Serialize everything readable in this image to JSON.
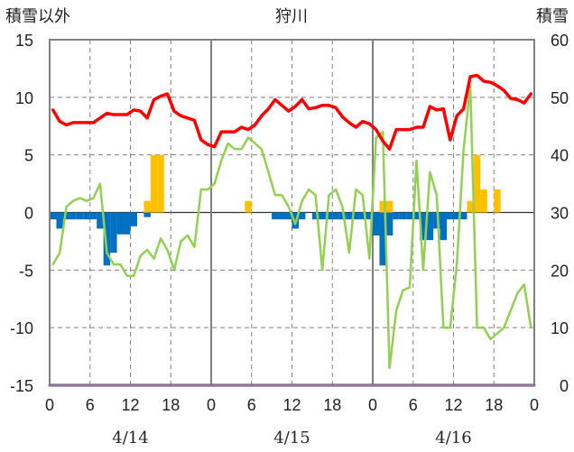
{
  "chart_data": {
    "type": "bar",
    "title": "狩川",
    "y_left_label": "積雪以外",
    "y_right_label": "積雪",
    "y_left_ticks": [
      "15",
      "10",
      "5",
      "0",
      "-5",
      "-10",
      "-15"
    ],
    "y_right_ticks": [
      "60",
      "50",
      "40",
      "30",
      "20",
      "10",
      "0"
    ],
    "y_left_range": [
      -15,
      15
    ],
    "y_right_range": [
      0,
      60
    ],
    "x_tick_labels": [
      "0",
      "6",
      "12",
      "18",
      "0",
      "6",
      "12",
      "18",
      "0",
      "6",
      "12",
      "18",
      "0"
    ],
    "x_range_hours": [
      0,
      72
    ],
    "dates": [
      "4/14",
      "4/15",
      "4/16"
    ],
    "grid": "dashed",
    "colors": {
      "temperature": "#ff0000",
      "snow_depth": "#92d050",
      "precipitation": "#ffc000",
      "temperature_change": "#0070c0",
      "snow_depth_zero": "#7030a0"
    },
    "series": [
      {
        "key": "temperature",
        "axis": "left",
        "kind": "line",
        "x": [
          0,
          1,
          2,
          3,
          4,
          5,
          6,
          7,
          8,
          9,
          10,
          11,
          12,
          13,
          14,
          15,
          16,
          17,
          18,
          19,
          20,
          21,
          22,
          23,
          24,
          25,
          26,
          27,
          28,
          29,
          30,
          31,
          32,
          33,
          34,
          35,
          36,
          37,
          38,
          39,
          40,
          41,
          42,
          43,
          44,
          45,
          46,
          47,
          48,
          49,
          50,
          51,
          52,
          53,
          54,
          55,
          56,
          57,
          58,
          59,
          60,
          61,
          62,
          63,
          64,
          65,
          66,
          67,
          68,
          69,
          70,
          71
        ],
        "values": [
          8.9,
          7.9,
          7.6,
          7.8,
          7.8,
          7.8,
          7.8,
          8.2,
          8.6,
          8.5,
          8.5,
          8.5,
          8.9,
          8.8,
          8.2,
          9.8,
          10.1,
          10.3,
          8.8,
          8.4,
          8.2,
          8.0,
          6.3,
          5.9,
          5.7,
          7.0,
          7.0,
          7.0,
          7.4,
          7.2,
          7.6,
          8.4,
          9.0,
          9.8,
          9.3,
          8.8,
          9.2,
          9.8,
          9.0,
          9.1,
          9.3,
          9.3,
          9.1,
          8.3,
          7.8,
          7.4,
          7.9,
          7.7,
          7.2,
          6.2,
          5.5,
          7.2,
          7.2,
          7.2,
          7.4,
          7.4,
          9.2,
          8.9,
          9.0,
          6.3,
          8.4,
          9.0,
          11.8,
          11.9,
          11.4,
          11.3,
          11.0,
          10.6,
          9.9,
          9.8,
          9.5,
          10.3
        ]
      },
      {
        "key": "snow_depth",
        "axis": "right",
        "kind": "line",
        "x": [
          0,
          1,
          2,
          3,
          4,
          5,
          6,
          7,
          8,
          9,
          10,
          11,
          12,
          13,
          14,
          15,
          16,
          17,
          18,
          19,
          20,
          21,
          22,
          23,
          24,
          25,
          26,
          27,
          28,
          29,
          30,
          31,
          32,
          33,
          34,
          35,
          36,
          37,
          38,
          39,
          40,
          41,
          42,
          43,
          44,
          45,
          46,
          47,
          48,
          49,
          50,
          51,
          52,
          53,
          54,
          55,
          56,
          57,
          58,
          59,
          60,
          61,
          62,
          63,
          64,
          65,
          66,
          67,
          68,
          69,
          70,
          71
        ],
        "values": [
          21,
          23,
          31,
          32,
          32.5,
          32,
          32.5,
          35,
          23,
          21,
          21,
          19,
          19,
          22.5,
          23.5,
          22,
          25.5,
          23.5,
          20,
          25,
          26,
          24,
          34,
          34,
          35,
          39,
          42,
          41,
          41,
          43,
          42,
          41,
          37,
          33,
          33,
          31,
          28,
          32,
          34,
          33,
          20,
          33,
          34,
          31,
          23,
          34,
          33,
          22,
          43,
          44,
          3,
          13,
          16.5,
          17,
          39,
          20,
          37,
          33,
          10,
          10,
          21,
          41,
          52,
          10,
          10,
          8,
          9,
          10,
          13,
          16,
          17.5,
          10
        ]
      },
      {
        "key": "precipitation",
        "axis": "left",
        "kind": "bar",
        "x": [
          14,
          15,
          16,
          29,
          49,
          50,
          62,
          63,
          64,
          65,
          66,
          67
        ],
        "values": [
          1,
          5,
          5,
          1,
          1,
          1,
          1,
          5,
          2,
          0,
          2,
          0
        ]
      },
      {
        "key": "temperature_change",
        "axis": "left",
        "kind": "bar",
        "x": [
          0,
          1,
          2,
          3,
          4,
          5,
          6,
          7,
          8,
          9,
          10,
          11,
          12,
          14,
          17,
          18,
          19,
          22,
          23,
          30,
          31,
          32,
          33,
          34,
          35,
          36,
          37,
          38,
          39,
          40,
          41,
          42,
          43,
          44,
          45,
          46,
          47,
          48,
          49,
          50,
          51,
          52,
          53,
          54,
          55,
          56,
          57,
          58,
          59,
          60,
          61
        ],
        "values": [
          -0.6,
          -1.4,
          -0.6,
          -0.6,
          -0.6,
          -0.6,
          -0.6,
          -1.4,
          -4.6,
          -3.5,
          -1.9,
          -1.9,
          -1.2,
          -0.4,
          0,
          0,
          0,
          0,
          0,
          0,
          0,
          0,
          -0.6,
          -0.6,
          -0.6,
          -1.4,
          -0.6,
          0,
          -0.6,
          -0.6,
          -0.6,
          -0.6,
          -0.6,
          -0.6,
          -0.6,
          -0.6,
          -0.6,
          -2.0,
          -4.6,
          -2.0,
          -0.6,
          -0.6,
          -0.6,
          -0.6,
          -2.4,
          -2.4,
          -1.4,
          -2.4,
          -0.6,
          -0.6,
          -0.6
        ]
      },
      {
        "key": "snow_depth_zero",
        "axis": "right",
        "kind": "line",
        "x": [
          0,
          72
        ],
        "values": [
          0,
          0
        ]
      }
    ]
  }
}
